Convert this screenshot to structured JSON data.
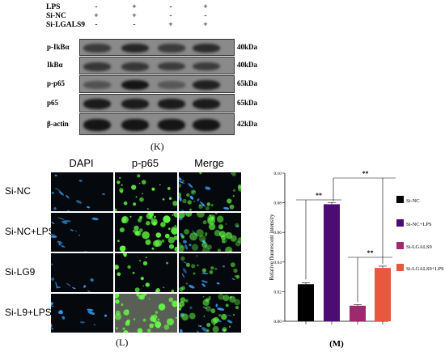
{
  "panel_k": {
    "caption": "(K)",
    "conditions": [
      {
        "label": "LPS",
        "signs": [
          "-",
          "+",
          "-",
          "+"
        ]
      },
      {
        "label": "Si-NC",
        "signs": [
          "+",
          "+",
          "-",
          "-"
        ]
      },
      {
        "label": "Si-LGALS9",
        "signs": [
          "-",
          "-",
          "+",
          "+"
        ]
      }
    ],
    "blots": [
      {
        "protein": "p-IkBα",
        "kda": "40kDa",
        "intensity": [
          0.55,
          0.75,
          0.55,
          0.7
        ]
      },
      {
        "protein": "IkBα",
        "kda": "40kDa",
        "intensity": [
          0.6,
          0.6,
          0.55,
          0.55
        ]
      },
      {
        "protein": "p-p65",
        "kda": "65kDa",
        "intensity": [
          0.35,
          0.9,
          0.3,
          0.8
        ]
      },
      {
        "protein": "p65",
        "kda": "65kDa",
        "intensity": [
          0.85,
          0.85,
          0.85,
          0.85
        ]
      },
      {
        "protein": "β-actin",
        "kda": "42kDa",
        "intensity": [
          0.9,
          0.9,
          0.9,
          0.9
        ]
      }
    ]
  },
  "panel_l": {
    "caption": "(L)",
    "columns": [
      "DAPI",
      "p-p65",
      "Merge"
    ],
    "rows": [
      "Si-NC",
      "Si-NC+LPS",
      "Si-LG9",
      "Si-L9+LPS"
    ],
    "green_level": [
      0.35,
      0.9,
      0.25,
      0.75
    ],
    "colors": {
      "dapi": "#3aa6ff",
      "p65": "#66ff44"
    }
  },
  "panel_m": {
    "caption": "(M)",
    "chart_data": {
      "type": "bar",
      "categories": [
        "Si-NC",
        "Si-NC+LPS",
        "Si-LGALS9",
        "Si-LGALS9+LPS"
      ],
      "values": [
        0.025,
        0.079,
        0.0105,
        0.036
      ],
      "errors": [
        0.001,
        0.0012,
        0.0008,
        0.0012
      ],
      "colors": [
        "#000000",
        "#4b0d73",
        "#a0286e",
        "#e9573f"
      ],
      "ylabel": "Relative fluorescent intensity",
      "yticks": [
        "0.00",
        "0.02",
        "0.04",
        "0.06",
        "0.08",
        "0.10"
      ],
      "ylim": [
        0,
        0.1
      ],
      "legend": [
        "Si-NC",
        "Si-NC+LPS",
        "Si-LGALS9",
        "Si-LGALS9+LPS"
      ],
      "legend_position": "right",
      "significance": [
        "**",
        "**",
        "**"
      ]
    }
  }
}
